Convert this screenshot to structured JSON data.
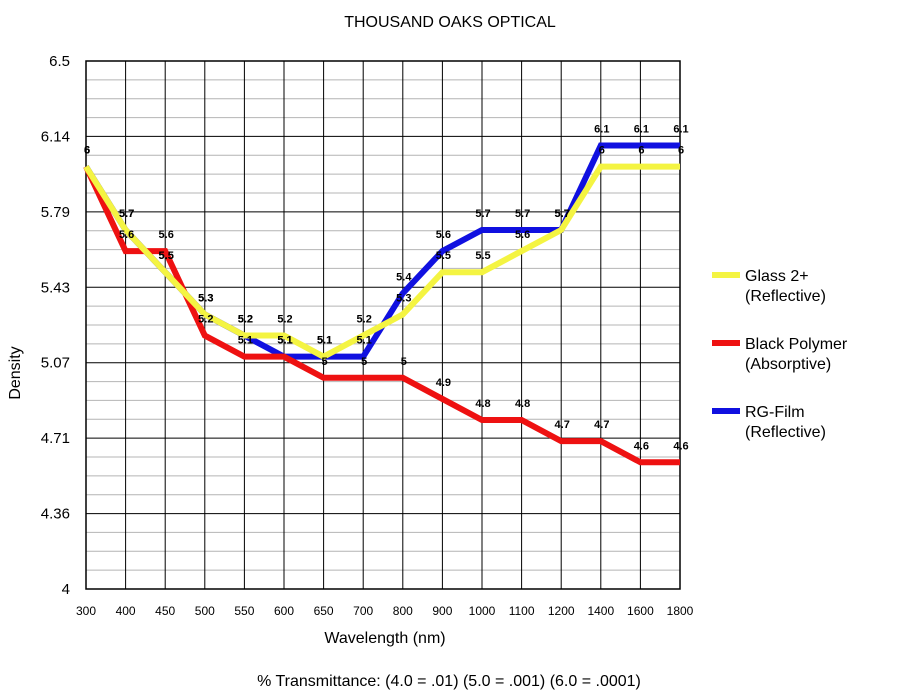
{
  "chart_data": {
    "type": "line",
    "title": "THOUSAND OAKS OPTICAL",
    "xlabel": "Wavelength (nm)",
    "ylabel": "Density",
    "footnote": "% Transmittance: (4.0 = .01) (5.0 = .001) (6.0 = .0001)",
    "categories": [
      "300",
      "400",
      "450",
      "500",
      "550",
      "600",
      "650",
      "700",
      "800",
      "900",
      "1000",
      "1100",
      "1200",
      "1400",
      "1600",
      "1800"
    ],
    "yticks": [
      "4",
      "4.36",
      "4.71",
      "5.07",
      "5.43",
      "5.79",
      "6.14",
      "6.5"
    ],
    "ylim": [
      4,
      6.5
    ],
    "grid": true,
    "legend_position": "right",
    "series": [
      {
        "name": "RG-Film\n(Reflective)",
        "color": "#1010e0",
        "values": [
          6,
          5.7,
          5.5,
          5.3,
          5.2,
          5.1,
          5.1,
          5.1,
          5.4,
          5.6,
          5.7,
          5.7,
          5.7,
          6.1,
          6.1,
          6.1
        ]
      },
      {
        "name": "Black Polymer\n(Absorptive)",
        "color": "#ee1111",
        "values": [
          6,
          5.6,
          5.6,
          5.2,
          5.1,
          5.1,
          5,
          5,
          5,
          4.9,
          4.8,
          4.8,
          4.7,
          4.7,
          4.6,
          4.6
        ]
      },
      {
        "name": "Glass 2+\n(Reflective)",
        "color": "#f4f442",
        "values": [
          6,
          5.7,
          5.5,
          5.3,
          5.2,
          5.2,
          5.1,
          5.2,
          5.3,
          5.5,
          5.5,
          5.6,
          5.7,
          6,
          6,
          6
        ]
      }
    ],
    "legend_order": [
      2,
      1,
      0
    ]
  }
}
